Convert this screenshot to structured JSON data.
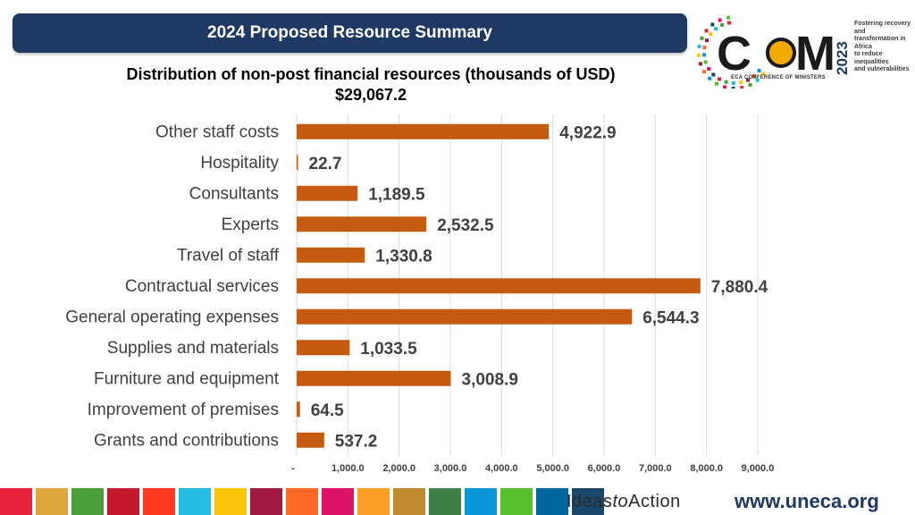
{
  "header": {
    "title": "2024 Proposed Resource Summary"
  },
  "logo": {
    "letters": [
      "C",
      "M"
    ],
    "year": "2023",
    "tagline": [
      "Fostering recovery and",
      "transformation in Africa",
      "to reduce inequalities",
      "and vulnerabilities"
    ],
    "org": "ECA CONFERENCE OF MINISTERS"
  },
  "chart_data": {
    "type": "bar",
    "orientation": "horizontal",
    "title": "Distribution of non-post financial resources (thousands of USD)",
    "subtitle": "$29,067.2",
    "categories": [
      "Other staff costs",
      "Hospitality",
      "Consultants",
      "Experts",
      "Travel of staff",
      "Contractual services",
      "General operating expenses",
      "Supplies and materials",
      "Furniture and equipment",
      "Improvement of premises",
      "Grants and contributions"
    ],
    "values": [
      4922.9,
      22.7,
      1189.5,
      2532.5,
      1330.8,
      7880.4,
      6544.3,
      1033.5,
      3008.9,
      64.5,
      537.2
    ],
    "data_labels": [
      "4,922.9",
      "22.7",
      "1,189.5",
      "2,532.5",
      "1,330.8",
      "7,880.4",
      "6,544.3",
      "1,033.5",
      "3,008.9",
      "64.5",
      "537.2"
    ],
    "x_ticks": [
      0,
      1000,
      2000,
      3000,
      4000,
      5000,
      6000,
      7000,
      8000,
      9000
    ],
    "x_tick_labels": [
      "-",
      "1,000.0",
      "2,000.0",
      "3,000.0",
      "4,000.0",
      "5,000.0",
      "6,000.0",
      "7,000.0",
      "8,000.0",
      "9,000.0"
    ],
    "xlim": [
      0,
      9000
    ],
    "bar_color": "#c55a11",
    "grid": true
  },
  "footer": {
    "tagline_parts": [
      "Ideas",
      "to",
      "Action"
    ],
    "url": "www.uneca.org",
    "colors": [
      "#e5243b",
      "#dda63a",
      "#4c9f38",
      "#c5192d",
      "#ff3a21",
      "#26bde2",
      "#fcc30b",
      "#a21942",
      "#fd6925",
      "#dd1367",
      "#fd9d24",
      "#bf8b2e",
      "#3f7e44",
      "#0a97d9",
      "#56c02b",
      "#00689d",
      "#19486a"
    ]
  }
}
